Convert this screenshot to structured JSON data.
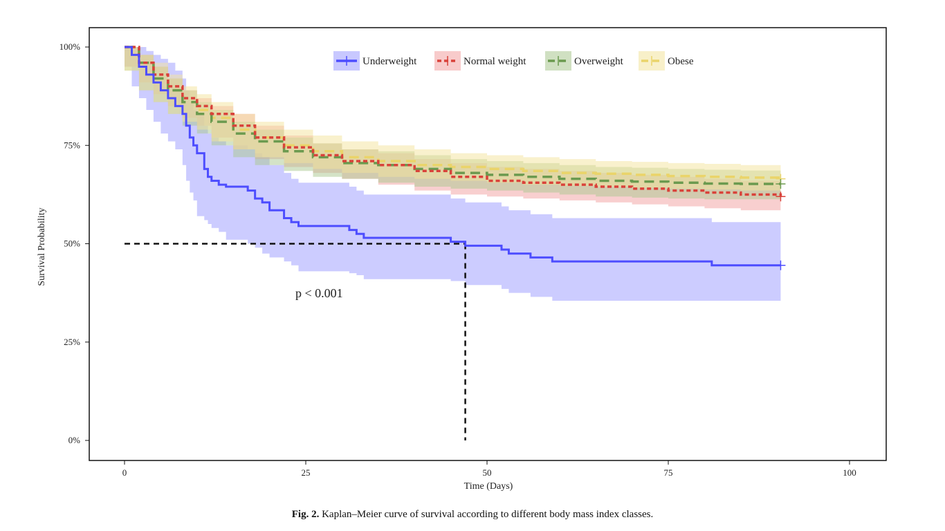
{
  "caption": {
    "label": "Fig. 2.",
    "text": " Kaplan–Meier curve of survival according to different body mass index classes."
  },
  "chart_data": {
    "type": "line",
    "xlabel": "Time (Days)",
    "ylabel": "Survival Probability",
    "xlim": [
      0,
      100
    ],
    "ylim": [
      0,
      1
    ],
    "x_ticks": [
      0,
      25,
      50,
      75,
      100
    ],
    "x_tick_labels": [
      "0",
      "25",
      "50",
      "75",
      "100"
    ],
    "y_ticks": [
      0,
      0.25,
      0.5,
      0.75,
      1.0
    ],
    "y_tick_labels": [
      "0%",
      "25%",
      "50%",
      "75%",
      "100%"
    ],
    "grid": false,
    "legend_position": "top-center",
    "annotation": "p < 0.001",
    "median_line": {
      "survival": 0.5,
      "time": 47
    },
    "series": [
      {
        "name": "Underweight",
        "color": "#4d4dff",
        "band_color": "#9a9aff",
        "dash": "solid",
        "x": [
          0,
          1,
          2,
          3,
          4,
          5,
          6,
          7,
          8,
          8.5,
          9,
          9.5,
          10,
          11,
          11.5,
          12,
          13,
          14,
          17,
          18,
          19,
          20,
          22,
          23,
          24,
          31,
          32,
          33,
          45,
          47,
          52,
          53,
          56,
          59,
          81,
          90.5
        ],
        "y": [
          1.0,
          0.98,
          0.95,
          0.93,
          0.91,
          0.89,
          0.87,
          0.85,
          0.83,
          0.8,
          0.77,
          0.75,
          0.73,
          0.69,
          0.67,
          0.66,
          0.65,
          0.645,
          0.635,
          0.615,
          0.605,
          0.585,
          0.565,
          0.555,
          0.545,
          0.535,
          0.525,
          0.515,
          0.505,
          0.495,
          0.485,
          0.475,
          0.465,
          0.455,
          0.445,
          0.445
        ],
        "lower": [
          1.0,
          0.95,
          0.9,
          0.87,
          0.84,
          0.81,
          0.78,
          0.76,
          0.74,
          0.7,
          0.66,
          0.63,
          0.61,
          0.57,
          0.56,
          0.55,
          0.54,
          0.53,
          0.51,
          0.5,
          0.49,
          0.475,
          0.465,
          0.455,
          0.445,
          0.43,
          0.425,
          0.42,
          0.41,
          0.405,
          0.395,
          0.385,
          0.375,
          0.365,
          0.355,
          0.355
        ],
        "upper": [
          1.0,
          1.0,
          1.0,
          0.99,
          0.98,
          0.97,
          0.96,
          0.94,
          0.92,
          0.89,
          0.86,
          0.84,
          0.83,
          0.8,
          0.78,
          0.77,
          0.76,
          0.75,
          0.74,
          0.73,
          0.72,
          0.7,
          0.68,
          0.665,
          0.655,
          0.645,
          0.635,
          0.625,
          0.615,
          0.605,
          0.595,
          0.585,
          0.575,
          0.565,
          0.555,
          0.555
        ]
      },
      {
        "name": "Normal weight",
        "color": "#d9423a",
        "band_color": "#f2a0a0",
        "dash": "dotted",
        "x": [
          0,
          2,
          4,
          6,
          8,
          10,
          12,
          15,
          18,
          22,
          26,
          30,
          35,
          40,
          45,
          50,
          55,
          60,
          65,
          70,
          75,
          80,
          85,
          90.5
        ],
        "y": [
          1.0,
          0.96,
          0.93,
          0.9,
          0.87,
          0.85,
          0.83,
          0.8,
          0.77,
          0.745,
          0.725,
          0.71,
          0.7,
          0.685,
          0.67,
          0.66,
          0.655,
          0.65,
          0.645,
          0.64,
          0.635,
          0.63,
          0.625,
          0.62
        ],
        "lower": [
          1.0,
          0.95,
          0.91,
          0.88,
          0.85,
          0.82,
          0.8,
          0.77,
          0.74,
          0.715,
          0.695,
          0.68,
          0.665,
          0.65,
          0.635,
          0.625,
          0.62,
          0.615,
          0.61,
          0.605,
          0.6,
          0.595,
          0.59,
          0.585
        ],
        "upper": [
          1.0,
          0.98,
          0.95,
          0.92,
          0.89,
          0.87,
          0.85,
          0.83,
          0.8,
          0.775,
          0.755,
          0.74,
          0.73,
          0.715,
          0.705,
          0.695,
          0.69,
          0.685,
          0.68,
          0.675,
          0.67,
          0.665,
          0.66,
          0.655
        ]
      },
      {
        "name": "Overweight",
        "color": "#6b9a4f",
        "band_color": "#a9c78f",
        "dash": "dashed",
        "x": [
          0,
          2,
          4,
          6,
          8,
          10,
          12,
          15,
          18,
          22,
          26,
          30,
          35,
          40,
          45,
          50,
          55,
          60,
          65,
          70,
          75,
          80,
          85,
          90.5
        ],
        "y": [
          1.0,
          0.96,
          0.92,
          0.89,
          0.86,
          0.83,
          0.81,
          0.78,
          0.76,
          0.735,
          0.72,
          0.705,
          0.7,
          0.69,
          0.68,
          0.675,
          0.67,
          0.665,
          0.66,
          0.658,
          0.655,
          0.653,
          0.652,
          0.652
        ],
        "lower": [
          1.0,
          0.94,
          0.89,
          0.86,
          0.83,
          0.8,
          0.78,
          0.75,
          0.72,
          0.7,
          0.685,
          0.67,
          0.665,
          0.655,
          0.645,
          0.64,
          0.635,
          0.63,
          0.625,
          0.62,
          0.617,
          0.615,
          0.613,
          0.613
        ],
        "upper": [
          1.0,
          0.98,
          0.95,
          0.92,
          0.89,
          0.86,
          0.84,
          0.81,
          0.79,
          0.77,
          0.755,
          0.74,
          0.735,
          0.725,
          0.715,
          0.71,
          0.705,
          0.7,
          0.695,
          0.693,
          0.69,
          0.688,
          0.686,
          0.686
        ]
      },
      {
        "name": "Obese",
        "color": "#ead46a",
        "band_color": "#f3e49c",
        "dash": "dashed",
        "x": [
          0,
          2,
          4,
          6,
          8,
          10,
          12,
          15,
          18,
          22,
          26,
          30,
          35,
          40,
          45,
          50,
          55,
          60,
          65,
          70,
          75,
          80,
          85,
          90.5
        ],
        "y": [
          1.0,
          0.96,
          0.92,
          0.89,
          0.86,
          0.84,
          0.82,
          0.79,
          0.77,
          0.75,
          0.735,
          0.72,
          0.71,
          0.7,
          0.695,
          0.69,
          0.685,
          0.68,
          0.678,
          0.675,
          0.672,
          0.67,
          0.668,
          0.665
        ],
        "lower": [
          1.0,
          0.94,
          0.89,
          0.86,
          0.83,
          0.81,
          0.79,
          0.76,
          0.74,
          0.72,
          0.705,
          0.69,
          0.68,
          0.67,
          0.665,
          0.66,
          0.655,
          0.65,
          0.647,
          0.645,
          0.642,
          0.64,
          0.638,
          0.635
        ],
        "upper": [
          1.0,
          0.98,
          0.96,
          0.93,
          0.9,
          0.88,
          0.86,
          0.83,
          0.81,
          0.79,
          0.775,
          0.76,
          0.75,
          0.74,
          0.73,
          0.725,
          0.72,
          0.715,
          0.71,
          0.708,
          0.705,
          0.703,
          0.7,
          0.697
        ]
      }
    ]
  }
}
